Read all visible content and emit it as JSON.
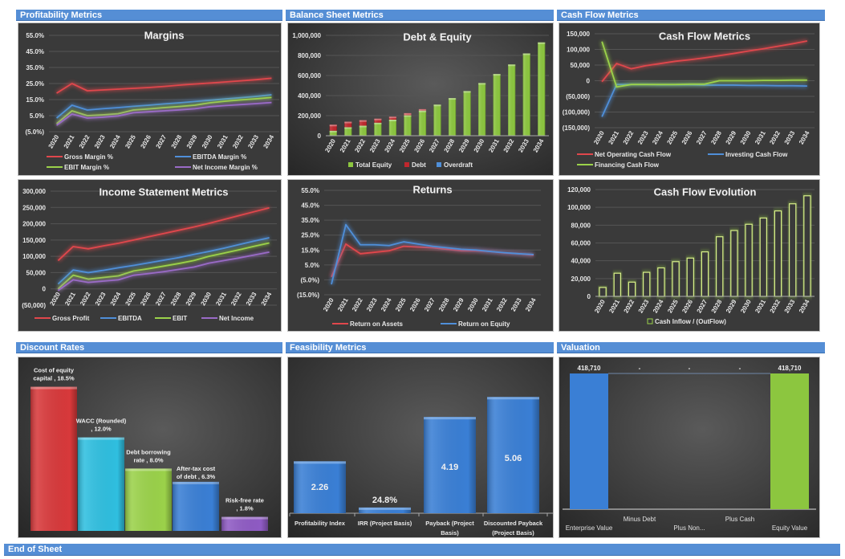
{
  "sections": {
    "profitability": "Profitability Metrics",
    "balance_sheet": "Balance Sheet Metrics",
    "cash_flow": "Cash Flow Metrics",
    "discount_rates": "Discount Rates",
    "feasibility": "Feasibility Metrics",
    "valuation": "Valuation",
    "end": "End of Sheet"
  },
  "colors": {
    "header": "#558ed5",
    "red": "#e0474c",
    "blue": "#4f8fd9",
    "green": "#9bd24a",
    "purple": "#9a6bc7",
    "cyan": "#2fbfe0"
  },
  "chart_data": [
    {
      "id": "margins",
      "type": "line",
      "title": "Margins",
      "categories": [
        "2020",
        "2021",
        "2022",
        "2023",
        "2024",
        "2025",
        "2026",
        "2027",
        "2028",
        "2029",
        "2030",
        "2031",
        "2032",
        "2033",
        "2034"
      ],
      "ylim": [
        -5,
        55
      ],
      "y_tick_values": [
        -5,
        5,
        15,
        25,
        35,
        45,
        55
      ],
      "y_ticks": [
        "(5.0%)",
        "5.0%",
        "15.0%",
        "25.0%",
        "35.0%",
        "45.0%",
        "55.0%"
      ],
      "grid": true,
      "legend": "bottom",
      "series": [
        {
          "name": "Gross Margin %",
          "color": "#e0474c",
          "values": [
            19,
            25,
            20.5,
            21,
            21.5,
            22,
            22.5,
            23.2,
            24,
            24.7,
            25.3,
            26,
            26.7,
            27.4,
            28.3
          ]
        },
        {
          "name": "EBITDA Margin %",
          "color": "#4f8fd9",
          "values": [
            3.5,
            11.5,
            8.5,
            9.3,
            10,
            10.8,
            11.5,
            12.3,
            13,
            13.8,
            14.6,
            15.4,
            16.2,
            17,
            18
          ]
        },
        {
          "name": "EBIT Margin %",
          "color": "#9bd24a",
          "values": [
            0,
            8,
            5,
            5.5,
            6.2,
            8.5,
            9.2,
            10,
            10.7,
            11.5,
            13,
            14,
            14.8,
            15.5,
            16.3
          ]
        },
        {
          "name": "Net Income Margin %",
          "color": "#9a6bc7",
          "values": [
            -1,
            6,
            3.5,
            4,
            4.8,
            6.8,
            7.4,
            8,
            8.6,
            9.3,
            10.6,
            11.3,
            11.9,
            12.5,
            13.2
          ]
        }
      ]
    },
    {
      "id": "debt-equity",
      "type": "bar",
      "stacked": true,
      "title": "Debt & Equity",
      "categories": [
        "2020",
        "2021",
        "2022",
        "2023",
        "2024",
        "2025",
        "2026",
        "2027",
        "2028",
        "2029",
        "2030",
        "2031",
        "2032",
        "2033",
        "2034"
      ],
      "ylim": [
        0,
        1000000
      ],
      "y_tick_values": [
        0,
        200000,
        400000,
        600000,
        800000,
        1000000
      ],
      "y_ticks": [
        "0",
        "200,000",
        "400,000",
        "600,000",
        "800,000",
        "1,000,000"
      ],
      "grid": true,
      "legend": "bottom",
      "series": [
        {
          "name": "Total Equity",
          "color": "#8cc63f",
          "values": [
            50000,
            85000,
            100000,
            130000,
            160000,
            205000,
            250000,
            310000,
            375000,
            445000,
            525000,
            615000,
            710000,
            820000,
            930000
          ]
        },
        {
          "name": "Debt",
          "color": "#c0272d",
          "values": [
            60000,
            55000,
            55000,
            40000,
            30000,
            20000,
            15000,
            0,
            0,
            0,
            0,
            0,
            0,
            0,
            0
          ]
        },
        {
          "name": "Overdraft",
          "color": "#4f8fd9",
          "values": [
            0,
            0,
            0,
            0,
            0,
            0,
            0,
            0,
            0,
            0,
            0,
            0,
            0,
            0,
            0
          ]
        }
      ]
    },
    {
      "id": "cash-flow-metrics",
      "type": "line",
      "title": "Cash Flow Metrics",
      "categories": [
        "2020",
        "2021",
        "2022",
        "2023",
        "2024",
        "2025",
        "2026",
        "2027",
        "2028",
        "2029",
        "2030",
        "2031",
        "2032",
        "2033",
        "2034"
      ],
      "ylim": [
        -150000,
        150000
      ],
      "y_tick_values": [
        -150000,
        -100000,
        -50000,
        0,
        50000,
        100000,
        150000
      ],
      "y_ticks": [
        "(150,000)",
        "(100,000)",
        "(50,000)",
        "0",
        "50,000",
        "100,000",
        "150,000"
      ],
      "grid": true,
      "legend": "bottom",
      "series": [
        {
          "name": "Net Operating Cash Flow",
          "color": "#e0474c",
          "values": [
            -3000,
            55000,
            38000,
            48000,
            55000,
            62000,
            67000,
            73000,
            80000,
            87000,
            95000,
            102000,
            110000,
            118000,
            127000
          ]
        },
        {
          "name": "Investing Cash Flow",
          "color": "#4f8fd9",
          "values": [
            -115000,
            -12000,
            -12000,
            -12000,
            -13000,
            -13000,
            -13000,
            -14000,
            -14000,
            -14000,
            -15000,
            -15000,
            -16000,
            -16000,
            -17000
          ]
        },
        {
          "name": "Financing Cash Flow",
          "color": "#9bd24a",
          "values": [
            125000,
            -20000,
            -12000,
            -12000,
            -12000,
            -12000,
            -11000,
            -11000,
            0,
            0,
            0,
            1000,
            1000,
            2000,
            2000
          ]
        }
      ]
    },
    {
      "id": "income-statement",
      "type": "line",
      "title": "Income Statement Metrics",
      "categories": [
        "2020",
        "2021",
        "2022",
        "2023",
        "2024",
        "2025",
        "2026",
        "2027",
        "2028",
        "2029",
        "2030",
        "2031",
        "2032",
        "2033",
        "2034"
      ],
      "ylim": [
        -50000,
        300000
      ],
      "y_tick_values": [
        -50000,
        0,
        50000,
        100000,
        150000,
        200000,
        250000,
        300000
      ],
      "y_ticks": [
        "(50,000)",
        "0",
        "50,000",
        "100,000",
        "150,000",
        "200,000",
        "250,000",
        "300,000"
      ],
      "grid": true,
      "legend": "bottom",
      "series": [
        {
          "name": "Gross Profit",
          "color": "#e0474c",
          "values": [
            87000,
            130000,
            123000,
            132000,
            140000,
            150000,
            160000,
            170000,
            180000,
            190000,
            201000,
            213000,
            225000,
            237000,
            249000
          ]
        },
        {
          "name": "EBITDA",
          "color": "#4f8fd9",
          "values": [
            15000,
            58000,
            50000,
            57000,
            65000,
            72000,
            80000,
            88000,
            96000,
            106000,
            115000,
            125000,
            136000,
            147000,
            157000
          ]
        },
        {
          "name": "EBIT",
          "color": "#9bd24a",
          "values": [
            0,
            42000,
            30000,
            35000,
            40000,
            55000,
            62000,
            70000,
            78000,
            87000,
            100000,
            110000,
            120000,
            131000,
            141000
          ]
        },
        {
          "name": "Net Income",
          "color": "#9a6bc7",
          "values": [
            -5000,
            28000,
            20000,
            24000,
            28000,
            42000,
            47000,
            53000,
            60000,
            67000,
            79000,
            87000,
            95000,
            104000,
            113000
          ]
        }
      ]
    },
    {
      "id": "returns",
      "type": "line",
      "title": "Returns",
      "categories": [
        "2020",
        "2021",
        "2022",
        "2023",
        "2024",
        "2025",
        "2026",
        "2027",
        "2028",
        "2029",
        "2030",
        "2031",
        "2032",
        "2033",
        "2034"
      ],
      "ylim": [
        -15,
        55
      ],
      "y_tick_values": [
        -15,
        -5,
        5,
        15,
        25,
        35,
        45,
        55
      ],
      "y_ticks": [
        "(15.0%)",
        "(5.0%)",
        "5.0%",
        "15.0%",
        "25.0%",
        "35.0%",
        "45.0%",
        "55.0%"
      ],
      "grid": true,
      "legend": "bottom",
      "series": [
        {
          "name": "Return on Assets",
          "color": "#e0474c",
          "values": [
            -3,
            19,
            12.5,
            13.5,
            14.5,
            17.5,
            17,
            16.5,
            15.5,
            14.5,
            14.5,
            14,
            13,
            12.5,
            11.5
          ]
        },
        {
          "name": "Return on Equity",
          "color": "#4f8fd9",
          "values": [
            -8,
            32,
            18.5,
            18.5,
            18,
            20.5,
            19,
            17.5,
            16.5,
            15.5,
            15,
            14,
            13.2,
            12.5,
            12
          ]
        }
      ]
    },
    {
      "id": "cash-flow-evolution",
      "type": "bar",
      "title": "Cash Flow Evolution",
      "categories": [
        "2020",
        "2021",
        "2022",
        "2023",
        "2024",
        "2025",
        "2026",
        "2027",
        "2028",
        "2029",
        "2030",
        "2031",
        "2032",
        "2033",
        "2034"
      ],
      "ylim": [
        0,
        120000
      ],
      "y_tick_values": [
        0,
        20000,
        40000,
        60000,
        80000,
        100000,
        120000
      ],
      "y_ticks": [
        "0",
        "20,000",
        "40,000",
        "60,000",
        "80,000",
        "100,000",
        "120,000"
      ],
      "grid": true,
      "legend": "bottom",
      "series": [
        {
          "name": "Cash Inflow / (OutFlow)",
          "color": "#9bd24a",
          "values": [
            10000,
            26000,
            16000,
            27000,
            32000,
            39000,
            43000,
            50000,
            67000,
            74000,
            81000,
            88000,
            96000,
            104000,
            113000
          ]
        }
      ]
    },
    {
      "id": "discount-rates",
      "type": "bar",
      "title": "",
      "categories": [
        "Cost of equity capital",
        "WACC (Rounded)",
        "Debt borrowing rate",
        "After-tax cost of debt",
        "Risk-free rate"
      ],
      "values": [
        18.5,
        12.0,
        8.0,
        6.3,
        1.8
      ],
      "data_labels": [
        "Cost of equity capital , 18.5%",
        "WACC (Rounded) , 12.0%",
        "Debt borrowing rate , 8.0%",
        "After-tax cost of debt , 6.3%",
        "Risk-free rate , 1.8%"
      ],
      "colors": [
        "#d8393b",
        "#2fbfe0",
        "#9bd24a",
        "#3a7fd5",
        "#8f5bc4"
      ],
      "grid": false
    },
    {
      "id": "feasibility",
      "type": "bar",
      "title": "",
      "categories": [
        "Profitability Index",
        "IRR (Project Basis)",
        "Payback  (Project Basis)",
        "Discounted Payback (Project Basis)"
      ],
      "values": [
        2.26,
        0.248,
        4.19,
        5.06
      ],
      "data_labels": [
        "2.26",
        "24.8%",
        "4.19",
        "5.06"
      ],
      "color": "#3a7fd5",
      "grid": false
    },
    {
      "id": "valuation",
      "type": "bar",
      "subtype": "waterfall",
      "title": "",
      "categories": [
        "Enterprise Value",
        "Minus Debt",
        "Plus Non...",
        "Plus Cash",
        "Equity Value"
      ],
      "values": [
        418710,
        0,
        0,
        0,
        418710
      ],
      "data_labels": [
        "418,710",
        "-",
        "-",
        "-",
        "418,710"
      ],
      "colors": [
        "#3a7fd5",
        "#3a7fd5",
        "#3a7fd5",
        "#3a7fd5",
        "#8cc63f"
      ],
      "grid": false
    }
  ]
}
